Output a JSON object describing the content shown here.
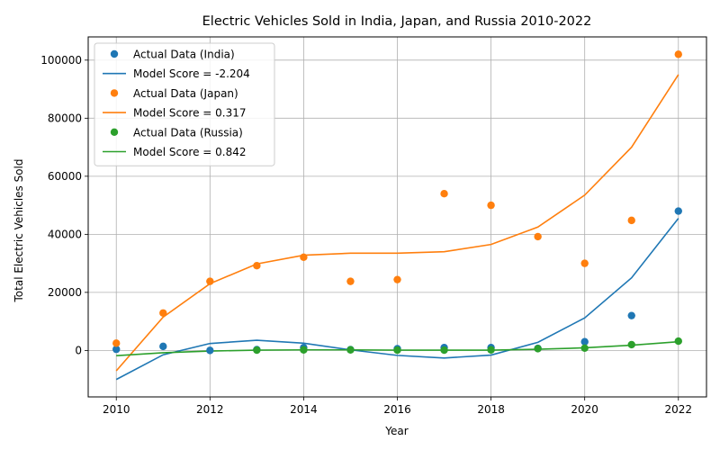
{
  "chart_data": {
    "type": "scatter",
    "title": "Electric Vehicles Sold in India, Japan, and Russia 2010-2022",
    "xlabel": "Year",
    "ylabel": "Total Electric Vehicles Sold",
    "xlim": [
      2009.4,
      2022.6
    ],
    "ylim": [
      -16000,
      108000
    ],
    "xticks": [
      2010,
      2012,
      2014,
      2016,
      2018,
      2020,
      2022
    ],
    "yticks": [
      0,
      20000,
      40000,
      60000,
      80000,
      100000
    ],
    "grid": true,
    "legend_position": "top-left",
    "x": [
      2010,
      2011,
      2012,
      2013,
      2014,
      2015,
      2016,
      2017,
      2018,
      2019,
      2020,
      2021,
      2022
    ],
    "series": [
      {
        "name": "Actual Data (India)",
        "color": "#1f77b4",
        "points": [
          400,
          1400,
          0,
          300,
          1000,
          300,
          600,
          1000,
          1000,
          700,
          3000,
          12000,
          48000
        ]
      },
      {
        "name": "Model Score = -2.204",
        "color": "#1f77b4",
        "fit": [
          -10000,
          -1500,
          2400,
          3500,
          2500,
          200,
          -1700,
          -2600,
          -1600,
          2800,
          11200,
          25000,
          45500
        ]
      },
      {
        "name": "Actual Data (Japan)",
        "color": "#ff7f0e",
        "points": [
          2500,
          12900,
          23800,
          29200,
          32100,
          23800,
          24400,
          54000,
          50000,
          39200,
          30000,
          44800,
          102000
        ]
      },
      {
        "name": "Model Score = 0.317",
        "color": "#ff7f0e",
        "fit": [
          -7000,
          11500,
          23000,
          29800,
          32800,
          33500,
          33500,
          34000,
          36500,
          42500,
          53500,
          70000,
          95000
        ]
      },
      {
        "name": "Actual Data (Russia)",
        "color": "#2ca02c",
        "points": [
          null,
          null,
          null,
          100,
          200,
          200,
          100,
          100,
          200,
          600,
          800,
          2000,
          3200
        ]
      },
      {
        "name": "Model Score = 0.842",
        "color": "#2ca02c",
        "fit": [
          -1800,
          -800,
          -200,
          100,
          200,
          200,
          100,
          100,
          100,
          400,
          900,
          1800,
          3000
        ]
      }
    ]
  }
}
